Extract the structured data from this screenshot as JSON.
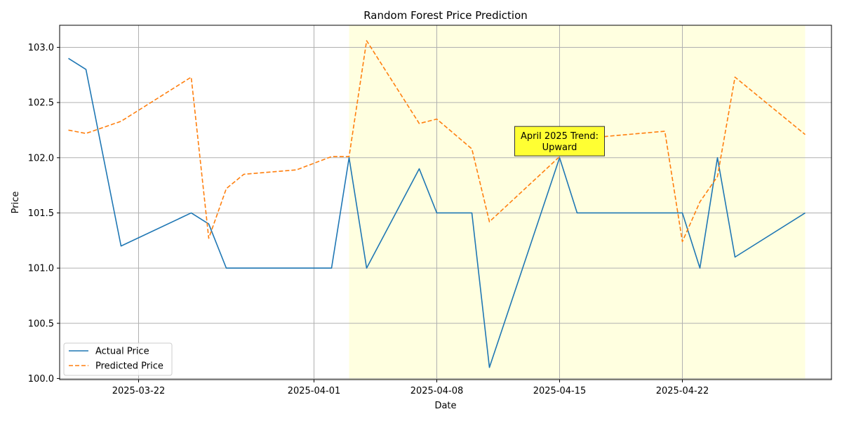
{
  "chart_data": {
    "type": "line",
    "title": "Random Forest Price Prediction",
    "xlabel": "Date",
    "ylabel": "Price",
    "x_ticks": [
      "2025-03-22",
      "2025-04-01",
      "2025-04-08",
      "2025-04-15",
      "2025-04-22"
    ],
    "y_ticks": [
      "100.0",
      "100.5",
      "101.0",
      "101.5",
      "102.0",
      "102.5",
      "103.0"
    ],
    "ylim": [
      99.99,
      103.2
    ],
    "xlim": [
      "2025-03-17T12:00",
      "2025-04-30T12:00"
    ],
    "grid": true,
    "legend_position": "lower-left",
    "shaded_range": [
      "2025-04-03",
      "2025-04-29"
    ],
    "shaded_color": "#ffffe0",
    "annotation": {
      "lines": [
        "April 2025 Trend:",
        "Upward"
      ],
      "x": "2025-04-15",
      "y": 102.15,
      "background": "#ffff33"
    },
    "series": [
      {
        "name": "Actual Price",
        "color": "#1f77b4",
        "style": "solid",
        "x": [
          "2025-03-18",
          "2025-03-19",
          "2025-03-21",
          "2025-03-25",
          "2025-03-26",
          "2025-03-27",
          "2025-04-02",
          "2025-04-03",
          "2025-04-04",
          "2025-04-07",
          "2025-04-08",
          "2025-04-10",
          "2025-04-11",
          "2025-04-15",
          "2025-04-16",
          "2025-04-22",
          "2025-04-23",
          "2025-04-24",
          "2025-04-25",
          "2025-04-29"
        ],
        "values": [
          102.9,
          102.8,
          101.2,
          101.5,
          101.4,
          101.0,
          101.0,
          102.0,
          101.0,
          101.9,
          101.5,
          101.5,
          100.1,
          102.0,
          101.5,
          101.5,
          101.0,
          102.0,
          101.1,
          101.5
        ]
      },
      {
        "name": "Predicted Price",
        "color": "#ff7f0e",
        "style": "dashed",
        "x": [
          "2025-03-18",
          "2025-03-19",
          "2025-03-21",
          "2025-03-25",
          "2025-03-26",
          "2025-03-27",
          "2025-03-28",
          "2025-03-31",
          "2025-04-02",
          "2025-04-03",
          "2025-04-04",
          "2025-04-07",
          "2025-04-08",
          "2025-04-10",
          "2025-04-11",
          "2025-04-15",
          "2025-04-16",
          "2025-04-21",
          "2025-04-22",
          "2025-04-23",
          "2025-04-24",
          "2025-04-25",
          "2025-04-29"
        ],
        "values": [
          102.25,
          102.22,
          102.33,
          102.73,
          101.27,
          101.72,
          101.85,
          101.89,
          102.01,
          102.01,
          103.06,
          102.31,
          102.35,
          102.08,
          101.42,
          102.01,
          102.17,
          102.24,
          101.24,
          101.6,
          101.83,
          102.73,
          102.21
        ]
      }
    ]
  }
}
